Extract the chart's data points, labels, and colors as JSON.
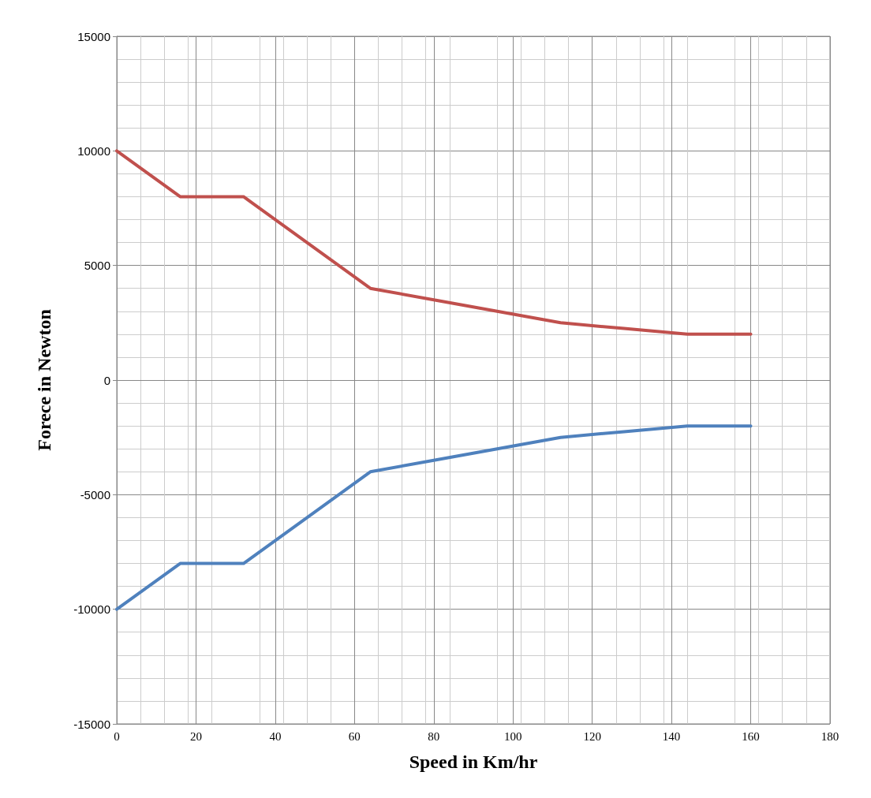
{
  "chart_data": {
    "type": "line",
    "xlabel": "Speed in Km/hr",
    "ylabel": "Forece in Newton",
    "xlim": [
      0,
      180
    ],
    "xticks": [
      0,
      20,
      40,
      60,
      80,
      100,
      120,
      140,
      160,
      180
    ],
    "ylim": [
      -15000,
      15000
    ],
    "yticks": [
      -15000,
      -10000,
      -5000,
      0,
      5000,
      10000,
      15000
    ],
    "grid": true,
    "marker": "none",
    "line_style": "solid",
    "series": [
      {
        "color": "#c0504d",
        "x": [
          0,
          16,
          32,
          64,
          80,
          96,
          112,
          128,
          144,
          160
        ],
        "values": [
          10000,
          8000,
          8000,
          4000,
          3500,
          3000,
          2500,
          2250,
          2000,
          2000
        ]
      },
      {
        "color": "#4f81bd",
        "x": [
          0,
          16,
          32,
          64,
          80,
          96,
          112,
          128,
          144,
          160
        ],
        "values": [
          -10000,
          -8000,
          -8000,
          -4000,
          -3500,
          -3000,
          -2500,
          -2250,
          -2000,
          -2000
        ]
      }
    ]
  }
}
